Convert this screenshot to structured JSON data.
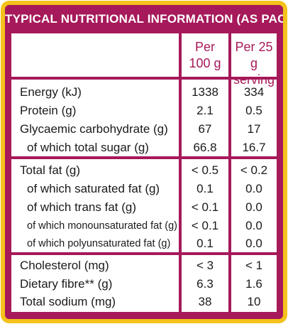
{
  "title": "TYPICAL NUTRITIONAL INFORMATION (AS PACKED)",
  "columns": {
    "per100_line1": "Per",
    "per100_line2": "100 g",
    "perServing_line1": "Per 25 g",
    "perServing_line2": "serving"
  },
  "rows": [
    {
      "label": "Energy (kJ)",
      "per100": "1338",
      "perServing": "334"
    },
    {
      "label": "Protein (g)",
      "per100": "2.1",
      "perServing": "0.5"
    },
    {
      "label": "Glycaemic carbohydrate (g)",
      "per100": "67",
      "perServing": "17"
    },
    {
      "label": "of which total sugar (g)",
      "per100": "66.8",
      "perServing": "16.7"
    },
    {
      "label": "Total fat (g)",
      "per100": "< 0.5",
      "perServing": "< 0.2"
    },
    {
      "label": "of which saturated fat (g)",
      "per100": "0.1",
      "perServing": "0.0"
    },
    {
      "label": "of which trans fat (g)",
      "per100": "< 0.1",
      "perServing": "0.0"
    },
    {
      "label": "of which monounsaturated fat (g)",
      "per100": "< 0.1",
      "perServing": "0.0"
    },
    {
      "label": "of which polyunsaturated fat (g)",
      "per100": "0.1",
      "perServing": "0.0"
    },
    {
      "label": "Cholesterol (mg)",
      "per100": "< 3",
      "perServing": "< 1"
    },
    {
      "label": "Dietary fibre** (g)",
      "per100": "6.3",
      "perServing": "1.6"
    },
    {
      "label": "Total sodium (mg)",
      "per100": "38",
      "perServing": "10"
    }
  ],
  "colors": {
    "frame": "#a6195a",
    "border": "#f4c21b",
    "text": "#1a1a1a"
  }
}
